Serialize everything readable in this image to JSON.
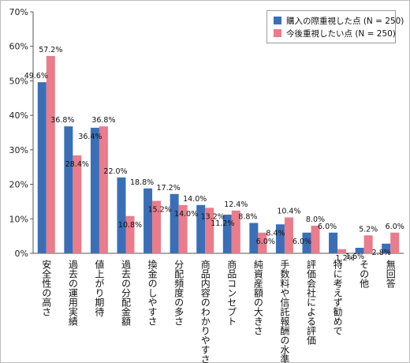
{
  "chart_data": {
    "type": "bar",
    "y_ticks": [
      "0%",
      "10%",
      "20%",
      "30%",
      "40%",
      "50%",
      "60%",
      "70%"
    ],
    "ylim": [
      0,
      70
    ],
    "grid": false,
    "legend_position": "top-right",
    "categories": [
      "安全性の高さ",
      "過去の運用実績",
      "値上がり期待",
      "過去の分配金額",
      "換金のしやすさ",
      "分配頻度の多さ",
      "商品内容のわかりやすさ",
      "商品コンセプト",
      "純資産額の大きさ",
      "手数料や信託報酬の水準",
      "評価会社による評価",
      "特に考えず勧めで",
      "その他",
      "無回答"
    ],
    "series": [
      {
        "name": "購入の際重視した点 (N = 250)",
        "color": "#3a6fb7",
        "values": [
          49.6,
          36.8,
          36.4,
          22.0,
          18.8,
          17.2,
          14.0,
          11.2,
          8.8,
          8.4,
          6.0,
          6.0,
          1.6,
          2.8
        ],
        "labels": [
          "49.6%",
          "36.8%",
          "36.4%",
          "22.0%",
          "18.8%",
          "17.2%",
          "14.0%",
          "11.2%",
          "8.8%",
          "8.4%",
          "6.0%",
          "6.0%",
          "1.6%",
          "2.8%"
        ]
      },
      {
        "name": "今後重視したい点 (N = 250)",
        "color": "#ea7c8b",
        "values": [
          57.2,
          28.4,
          36.8,
          10.8,
          15.2,
          14.0,
          13.2,
          12.4,
          6.0,
          10.4,
          8.0,
          1.2,
          5.2,
          6.0
        ],
        "labels": [
          "57.2%",
          "28.4%",
          "36.8%",
          "10.8%",
          "15.2%",
          "14.0%",
          "13.2%",
          "12.4%",
          "6.0%",
          "10.4%",
          "8.0%",
          "1.2%",
          "5.2%",
          "6.0%"
        ]
      }
    ]
  }
}
